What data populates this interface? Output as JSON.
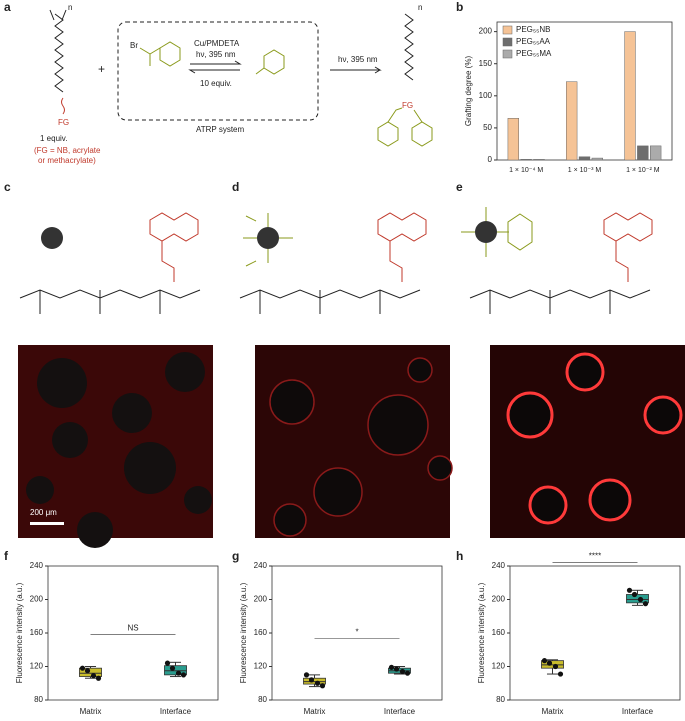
{
  "panel_labels": [
    "a",
    "b",
    "c",
    "d",
    "e",
    "f",
    "g",
    "h"
  ],
  "scheme": {
    "n1": "n",
    "fg1": "FG",
    "plus": "+",
    "br": "Br",
    "catalyst": "Cu/PMDETA",
    "light1": "hν, 395 nm",
    "equiv10": "10 equiv.",
    "atrp": "ATRP system",
    "light2": "hν, 395 nm",
    "n2": "n",
    "fg2": "FG",
    "equiv1": "1 equiv.",
    "fg_note1": "(FG = NB, acrylate",
    "fg_note2": "or methacrylate)"
  },
  "micrograph": {
    "scale_bar": "200 μm"
  },
  "chart_data": [
    {
      "type": "bar",
      "ylabel": "Grafting degree (%)",
      "categories": [
        "1 × 10⁻⁴ M",
        "1 × 10⁻³ M",
        "1 × 10⁻² M"
      ],
      "series": [
        {
          "name": "PEG₅₅NB",
          "color": "#f5c396",
          "values": [
            65,
            122,
            200
          ]
        },
        {
          "name": "PEG₅₅AA",
          "color": "#6e6e6e",
          "values": [
            1,
            5,
            22
          ]
        },
        {
          "name": "PEG₅₅MA",
          "color": "#ababab",
          "values": [
            1,
            3,
            22
          ]
        }
      ],
      "ylim": [
        0,
        215
      ],
      "yticks": [
        0,
        50,
        100,
        150,
        200
      ],
      "legend": "top-left"
    },
    {
      "type": "box",
      "ylabel": "Fluorescence intensity (a.u.)",
      "categories": [
        "Matrix",
        "Interface"
      ],
      "significance": "NS",
      "ylim": [
        80,
        240
      ],
      "yticks": [
        80,
        120,
        160,
        200,
        240
      ],
      "boxes": [
        {
          "color": "#c9bd2c",
          "min": 106,
          "q1": 108,
          "median": 112,
          "q3": 118,
          "max": 120,
          "points": [
            118,
            115,
            109,
            106
          ]
        },
        {
          "color": "#2a9d8f",
          "min": 108,
          "q1": 110,
          "median": 115,
          "q3": 121,
          "max": 125,
          "points": [
            124,
            118,
            112,
            110
          ]
        }
      ]
    },
    {
      "type": "box",
      "ylabel": "Fluorescence intensity (a.u.)",
      "categories": [
        "Matrix",
        "Interface"
      ],
      "significance": "*",
      "ylim": [
        80,
        240
      ],
      "yticks": [
        80,
        120,
        160,
        200,
        240
      ],
      "boxes": [
        {
          "color": "#c9bd2c",
          "min": 96,
          "q1": 99,
          "median": 102,
          "q3": 106,
          "max": 110,
          "points": [
            110,
            104,
            100,
            97
          ]
        },
        {
          "color": "#2a9d8f",
          "min": 111,
          "q1": 112,
          "median": 115,
          "q3": 118,
          "max": 120,
          "points": [
            119,
            117,
            114,
            112
          ]
        }
      ]
    },
    {
      "type": "box",
      "ylabel": "Fluorescence intensity (a.u.)",
      "categories": [
        "Matrix",
        "Interface"
      ],
      "significance": "****",
      "ylim": [
        80,
        240
      ],
      "yticks": [
        80,
        120,
        160,
        200,
        240
      ],
      "boxes": [
        {
          "color": "#c9bd2c",
          "min": 111,
          "q1": 118,
          "median": 122,
          "q3": 127,
          "max": 128,
          "points": [
            127,
            124,
            120,
            111
          ]
        },
        {
          "color": "#2a9d8f",
          "min": 193,
          "q1": 196,
          "median": 200,
          "q3": 206,
          "max": 211,
          "points": [
            211,
            206,
            200,
            195
          ]
        }
      ]
    }
  ]
}
